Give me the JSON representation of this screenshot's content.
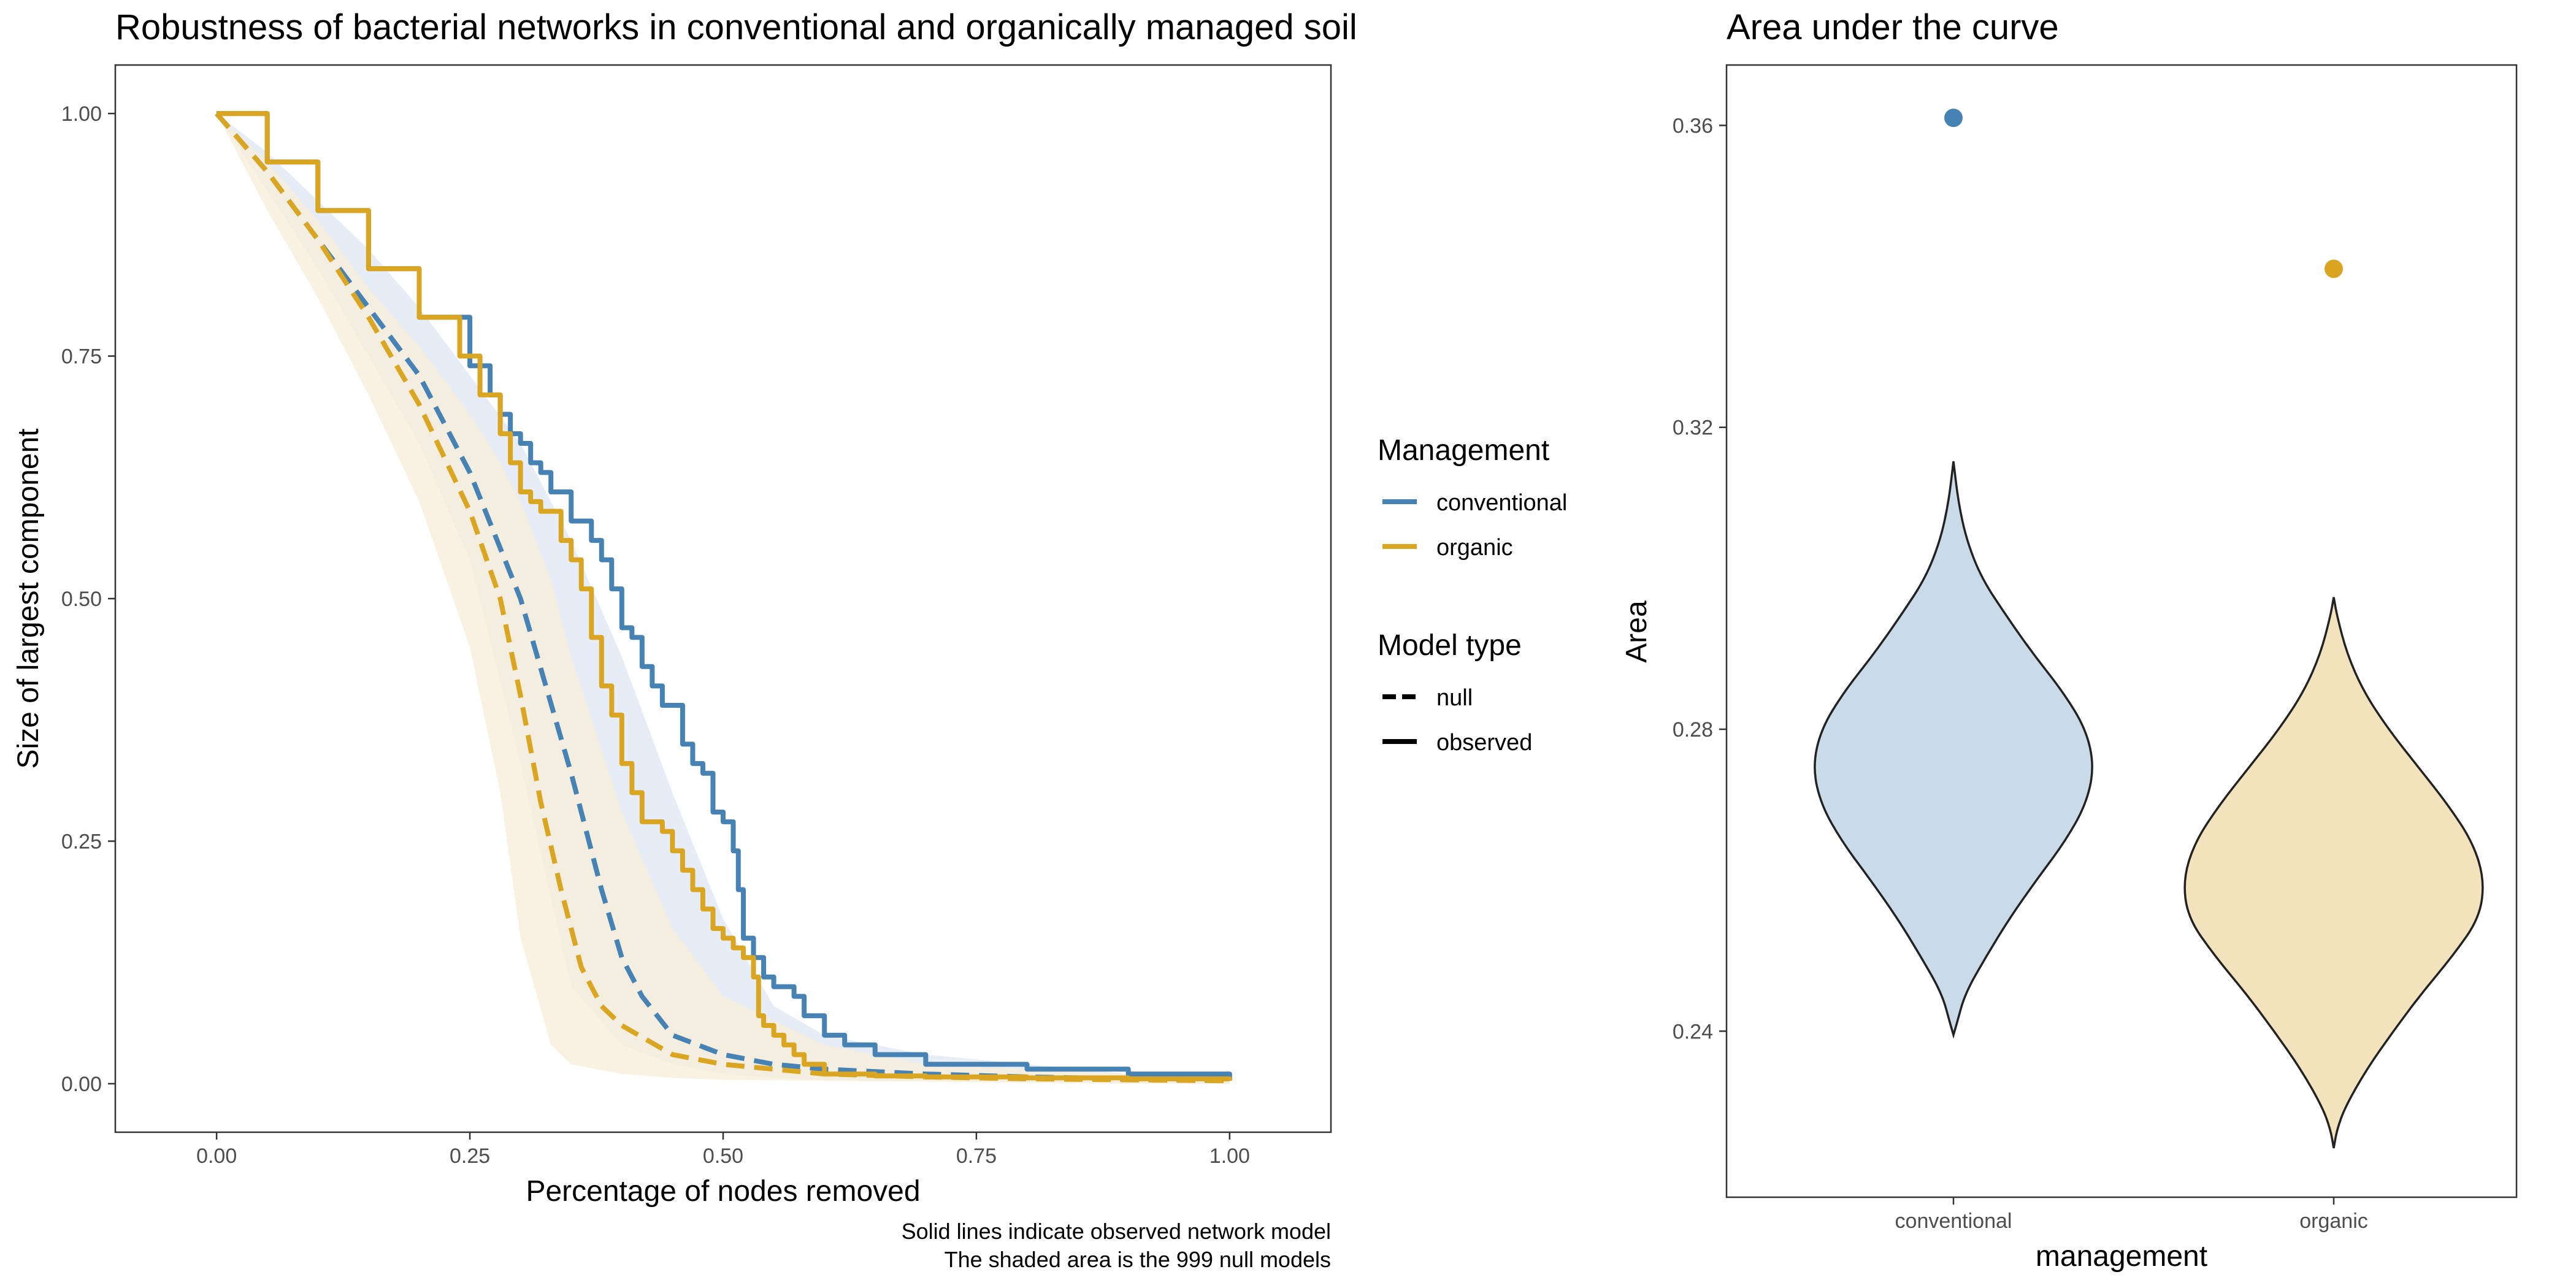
{
  "colors": {
    "conventional": "#4682B4",
    "organic": "#DAA520",
    "conventional_fill": "#C9DAE9",
    "organic_fill": "#F3E3BC",
    "conventional_band": "#DDE7F3",
    "organic_band": "#F7EED8"
  },
  "chart_data": [
    {
      "type": "line",
      "title": "Robustness of bacterial networks in conventional and organically managed soil",
      "xlabel": "Percentage of nodes removed",
      "ylabel": "Size of largest component",
      "xlim": [
        -0.1,
        1.1
      ],
      "ylim": [
        -0.05,
        1.05
      ],
      "xticks": [
        "0.00",
        "0.25",
        "0.50",
        "0.75",
        "1.00"
      ],
      "yticks": [
        "0.00",
        "0.25",
        "0.50",
        "0.75",
        "1.00"
      ],
      "grid": false,
      "legend_position": "right",
      "caption": [
        "Solid lines indicate observed network model",
        "The shaded area is the 999 null models"
      ],
      "legend": {
        "management_title": "Management",
        "management_items": [
          "conventional",
          "organic"
        ],
        "model_title": "Model type",
        "model_items": [
          "null",
          "observed"
        ]
      },
      "series": [
        {
          "name": "conventional",
          "model": "observed",
          "x": [
            0,
            0.05,
            0.1,
            0.15,
            0.2,
            0.25,
            0.27,
            0.28,
            0.29,
            0.3,
            0.31,
            0.32,
            0.33,
            0.35,
            0.37,
            0.38,
            0.39,
            0.4,
            0.41,
            0.42,
            0.43,
            0.44,
            0.45,
            0.46,
            0.47,
            0.48,
            0.49,
            0.5,
            0.51,
            0.515,
            0.52,
            0.53,
            0.54,
            0.55,
            0.56,
            0.57,
            0.58,
            0.6,
            0.62,
            0.65,
            0.7,
            0.8,
            0.9,
            1.0
          ],
          "y": [
            1.0,
            0.95,
            0.9,
            0.84,
            0.79,
            0.74,
            0.71,
            0.69,
            0.67,
            0.66,
            0.64,
            0.63,
            0.61,
            0.58,
            0.56,
            0.54,
            0.51,
            0.47,
            0.46,
            0.43,
            0.41,
            0.39,
            0.39,
            0.35,
            0.33,
            0.32,
            0.28,
            0.27,
            0.24,
            0.2,
            0.15,
            0.13,
            0.11,
            0.1,
            0.1,
            0.09,
            0.07,
            0.05,
            0.04,
            0.03,
            0.02,
            0.015,
            0.01,
            0.004
          ]
        },
        {
          "name": "organic",
          "model": "observed",
          "x": [
            0,
            0.05,
            0.1,
            0.15,
            0.2,
            0.24,
            0.26,
            0.28,
            0.29,
            0.3,
            0.31,
            0.32,
            0.34,
            0.35,
            0.36,
            0.37,
            0.38,
            0.39,
            0.4,
            0.41,
            0.42,
            0.43,
            0.44,
            0.45,
            0.46,
            0.47,
            0.48,
            0.49,
            0.5,
            0.51,
            0.52,
            0.53,
            0.535,
            0.54,
            0.55,
            0.56,
            0.57,
            0.58,
            0.6,
            0.65,
            0.7,
            0.8,
            0.9,
            1.0
          ],
          "y": [
            1.0,
            0.95,
            0.9,
            0.84,
            0.79,
            0.75,
            0.71,
            0.67,
            0.64,
            0.61,
            0.6,
            0.59,
            0.56,
            0.54,
            0.51,
            0.46,
            0.41,
            0.38,
            0.33,
            0.3,
            0.27,
            0.27,
            0.26,
            0.24,
            0.22,
            0.2,
            0.18,
            0.16,
            0.15,
            0.14,
            0.13,
            0.11,
            0.07,
            0.06,
            0.05,
            0.04,
            0.03,
            0.02,
            0.01,
            0.008,
            0.007,
            0.006,
            0.005,
            0.003
          ]
        },
        {
          "name": "conventional",
          "model": "null",
          "x": [
            0,
            0.05,
            0.1,
            0.15,
            0.2,
            0.25,
            0.3,
            0.35,
            0.38,
            0.4,
            0.42,
            0.45,
            0.5,
            0.55,
            0.6,
            0.7,
            0.8,
            0.9,
            1.0
          ],
          "y": [
            1.0,
            0.94,
            0.87,
            0.8,
            0.73,
            0.63,
            0.5,
            0.32,
            0.2,
            0.13,
            0.09,
            0.05,
            0.03,
            0.02,
            0.015,
            0.01,
            0.007,
            0.005,
            0.003
          ]
        },
        {
          "name": "organic",
          "model": "null",
          "x": [
            0,
            0.05,
            0.1,
            0.15,
            0.2,
            0.25,
            0.28,
            0.3,
            0.32,
            0.34,
            0.36,
            0.38,
            0.4,
            0.45,
            0.5,
            0.55,
            0.6,
            0.7,
            0.8,
            0.9,
            1.0
          ],
          "y": [
            1.0,
            0.94,
            0.87,
            0.79,
            0.7,
            0.59,
            0.5,
            0.4,
            0.29,
            0.2,
            0.12,
            0.08,
            0.06,
            0.03,
            0.02,
            0.015,
            0.01,
            0.007,
            0.005,
            0.004,
            0.003
          ]
        }
      ],
      "null_bands": [
        {
          "name": "conventional",
          "x": [
            0,
            0.05,
            0.1,
            0.15,
            0.2,
            0.25,
            0.3,
            0.35,
            0.4,
            0.45,
            0.5,
            0.55,
            0.6,
            0.7,
            0.8,
            0.9,
            1.0
          ],
          "upper": [
            1.0,
            0.96,
            0.91,
            0.86,
            0.8,
            0.73,
            0.66,
            0.56,
            0.44,
            0.3,
            0.17,
            0.08,
            0.05,
            0.03,
            0.02,
            0.01,
            0.006
          ],
          "lower": [
            1.0,
            0.92,
            0.84,
            0.75,
            0.66,
            0.54,
            0.33,
            0.1,
            0.04,
            0.02,
            0.01,
            0.006,
            0.004,
            0.003,
            0.002,
            0.001,
            0.0
          ]
        },
        {
          "name": "organic",
          "x": [
            0,
            0.05,
            0.1,
            0.15,
            0.2,
            0.25,
            0.28,
            0.3,
            0.33,
            0.35,
            0.4,
            0.45,
            0.5,
            0.6,
            0.7,
            0.8,
            0.9,
            1.0
          ],
          "upper": [
            1.0,
            0.95,
            0.89,
            0.82,
            0.76,
            0.69,
            0.64,
            0.6,
            0.52,
            0.44,
            0.28,
            0.16,
            0.09,
            0.04,
            0.02,
            0.015,
            0.01,
            0.006
          ],
          "lower": [
            1.0,
            0.9,
            0.81,
            0.71,
            0.6,
            0.45,
            0.3,
            0.15,
            0.04,
            0.02,
            0.01,
            0.006,
            0.004,
            0.003,
            0.002,
            0.001,
            0.0,
            0.0
          ]
        }
      ]
    },
    {
      "type": "violin",
      "title": "Area under the curve",
      "xlabel": "management",
      "ylabel": "Area",
      "categories": [
        "conventional",
        "organic"
      ],
      "yticks": [
        "0.24",
        "0.28",
        "0.32",
        "0.36"
      ],
      "ylim": [
        0.218,
        0.368
      ],
      "observed_points": [
        0.361,
        0.341
      ],
      "densities": [
        {
          "name": "conventional",
          "y": [
            0.2395,
            0.241,
            0.245,
            0.25,
            0.255,
            0.26,
            0.265,
            0.27,
            0.275,
            0.28,
            0.285,
            0.29,
            0.295,
            0.3,
            0.305,
            0.31,
            0.3155
          ],
          "half_width": [
            0.0,
            0.02,
            0.07,
            0.2,
            0.34,
            0.5,
            0.67,
            0.8,
            0.85,
            0.8,
            0.66,
            0.48,
            0.32,
            0.17,
            0.08,
            0.03,
            0.0
          ]
        },
        {
          "name": "organic",
          "y": [
            0.2245,
            0.227,
            0.23,
            0.235,
            0.24,
            0.245,
            0.25,
            0.255,
            0.26,
            0.265,
            0.27,
            0.275,
            0.28,
            0.285,
            0.29,
            0.295,
            0.2975
          ],
          "half_width": [
            0.0,
            0.02,
            0.07,
            0.2,
            0.36,
            0.53,
            0.72,
            0.88,
            0.91,
            0.84,
            0.69,
            0.51,
            0.33,
            0.18,
            0.08,
            0.02,
            0.0
          ]
        }
      ]
    }
  ]
}
